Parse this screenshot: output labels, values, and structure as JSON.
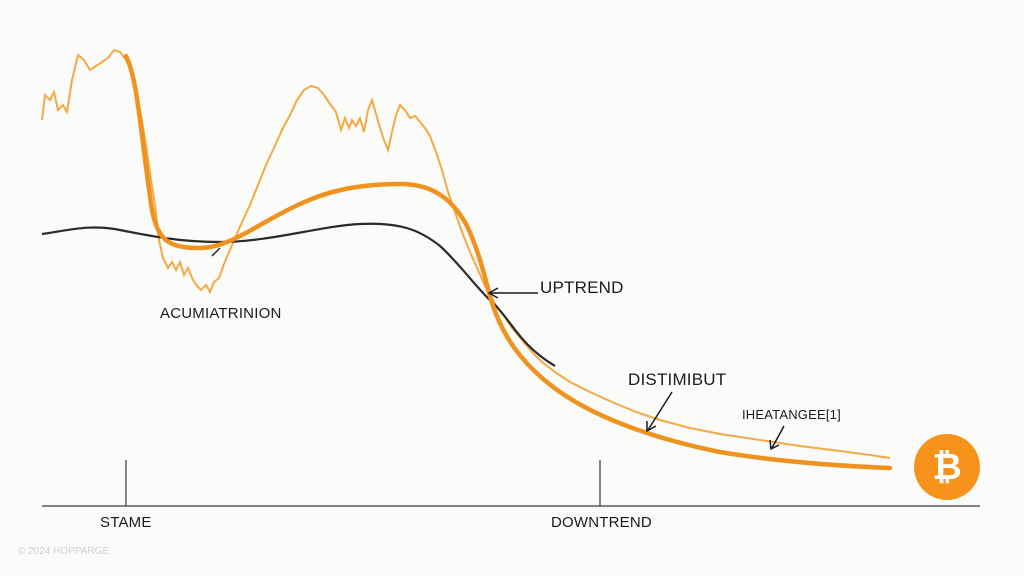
{
  "labels": {
    "accumulation": "ACUMIATRINION",
    "uptrend": "UPTREND",
    "distribution": "DISTIMIBUT",
    "rebalance": "IHEATANGEE[1]",
    "stame": "STAME",
    "downtrend": "DOWNTREND"
  },
  "watermark": "© 2024 HOPPARGE",
  "bitcoin_badge": {
    "icon": "bitcoin-icon",
    "glyph": "₿",
    "color": "#f7931a"
  },
  "colors": {
    "accent": "#f0921e",
    "accent_light": "#f4a944",
    "ink": "#2a2a2a",
    "background": "#fbfbfa"
  }
}
